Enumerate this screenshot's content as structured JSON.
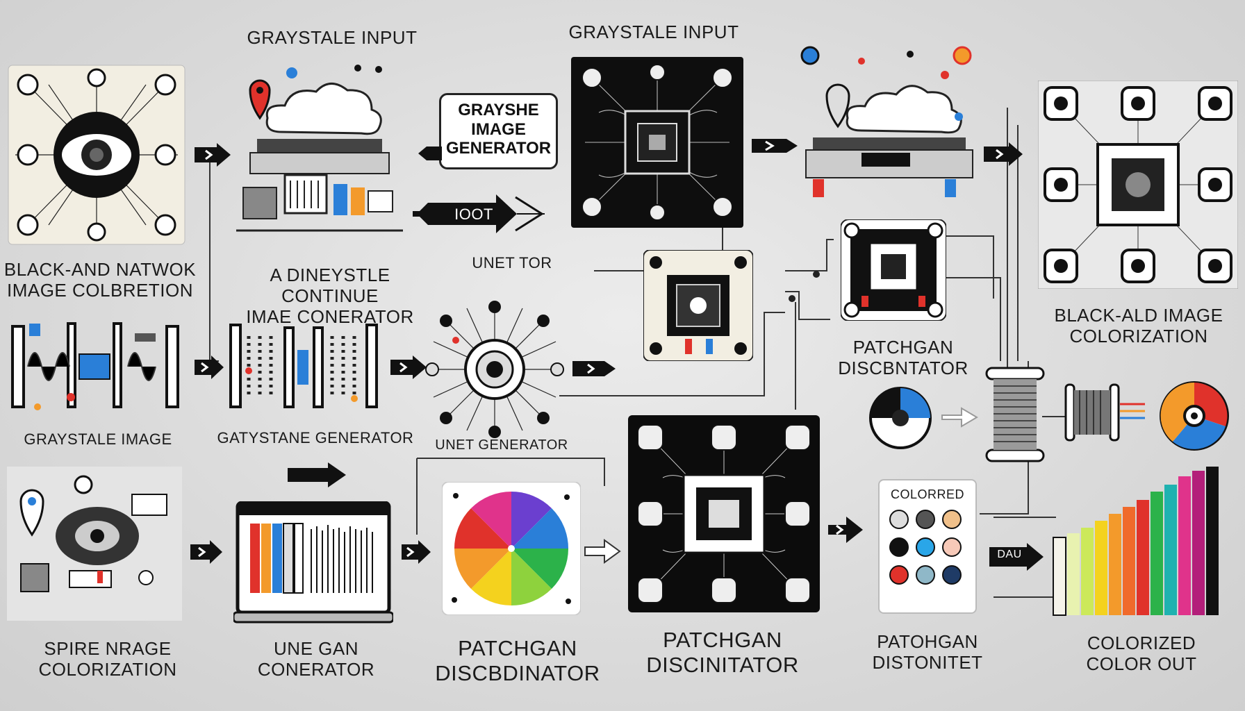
{
  "labels": {
    "top_input_1": "GRAYSTALE INPUT",
    "top_input_2": "GRAYSTALE INPUT",
    "bubble_lines": [
      "GRAYSHE",
      "IMAGE",
      "GENERATOR"
    ],
    "bubble_side": "IOOT",
    "blk_network": "BLACK-AND NATWOK\nIMAGE COLBRETION",
    "one_style": "A DINEYSTLE CONTINUE\nIMAE CONERATOR",
    "unet_tor": "UNET   TOR",
    "patchgan_disc_top": "PATCHGAN\nDISCBNTATOR",
    "black_ald": "BLACK-ALD IMAGE\nCOLORIZATION",
    "graystale_image": "GRAYSTALE IMAGE",
    "gatystane_gen": "GATYSTANE GENERATOR",
    "unet_generator": "UNET GENERATOR",
    "colorred": "COLORRED",
    "spire_image": "SPIRE NRAGE\nCOLORIZATION",
    "une_gan": "UNE GAN\nCONERATOR",
    "patchgan_disc_mid": "PATCHGAN\nDISCBDINATOR",
    "patchgan_disc_big": "PATCHGAN\nDISCINITATOR",
    "patohgan": "PATOHGAN\nDISTONITET",
    "colorized": "COLORIZED\nCOLOR OUT",
    "dau": "DAU"
  },
  "colors": {
    "accent_red": "#e0322b",
    "accent_blue": "#2a7fd8",
    "accent_orange": "#f39a2b",
    "ink": "#111111",
    "paper": "#f2eee2"
  }
}
